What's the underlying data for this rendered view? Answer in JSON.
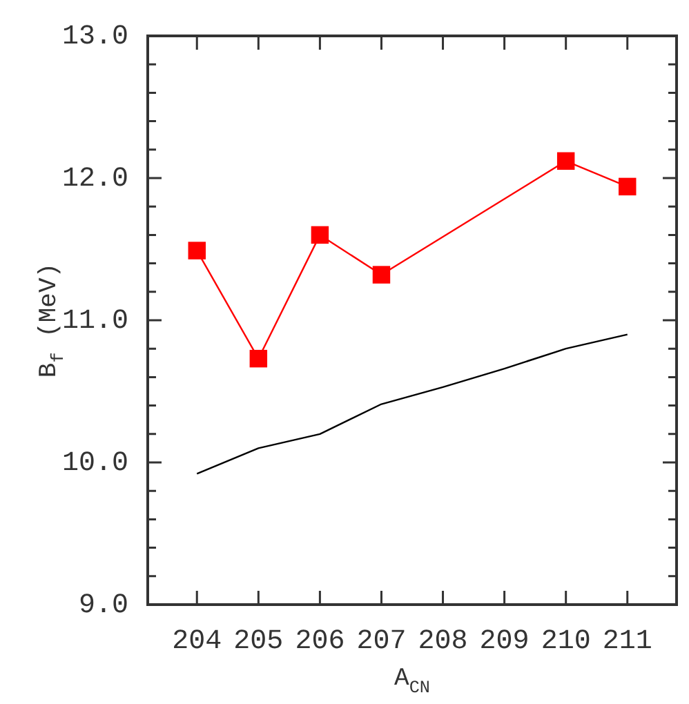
{
  "chart_data": {
    "type": "line",
    "xlabel": "A$_{CN}$",
    "ylabel": "B$_{f}$ (MeV)",
    "x": [
      204,
      205,
      206,
      207,
      208,
      209,
      210,
      211
    ],
    "xlim": [
      203.2,
      211.8
    ],
    "xticks": [
      204,
      205,
      206,
      207,
      208,
      209,
      210,
      211
    ],
    "ylim": [
      9,
      13
    ],
    "yticks": [
      {
        "value": 9,
        "label": "9.0"
      },
      {
        "value": 9.2,
        "label": null
      },
      {
        "value": 9.4,
        "label": null
      },
      {
        "value": 9.6,
        "label": null
      },
      {
        "value": 9.8,
        "label": null
      },
      {
        "value": 10,
        "label": "10.0"
      },
      {
        "value": 10.2,
        "label": null
      },
      {
        "value": 10.4,
        "label": null
      },
      {
        "value": 10.6,
        "label": null
      },
      {
        "value": 10.8,
        "label": null
      },
      {
        "value": 11,
        "label": "11.0"
      },
      {
        "value": 11.2,
        "label": null
      },
      {
        "value": 11.4,
        "label": null
      },
      {
        "value": 11.6,
        "label": null
      },
      {
        "value": 11.8,
        "label": null
      },
      {
        "value": 12,
        "label": "12.0"
      },
      {
        "value": 12.2,
        "label": null
      },
      {
        "value": 12.4,
        "label": null
      },
      {
        "value": 12.6,
        "label": null
      },
      {
        "value": 12.8,
        "label": null
      },
      {
        "value": 13,
        "label": "13.0"
      }
    ],
    "grid": false,
    "legend": false,
    "series": [
      {
        "color": "#000000",
        "marker": "none",
        "values": [
          9.92,
          10.1,
          10.2,
          10.41,
          10.53,
          10.66,
          10.8,
          10.9
        ]
      },
      {
        "color": "#ff0000",
        "marker": "square",
        "values": [
          11.49,
          10.73,
          11.6,
          11.32,
          null,
          null,
          12.12,
          11.94
        ]
      }
    ]
  }
}
